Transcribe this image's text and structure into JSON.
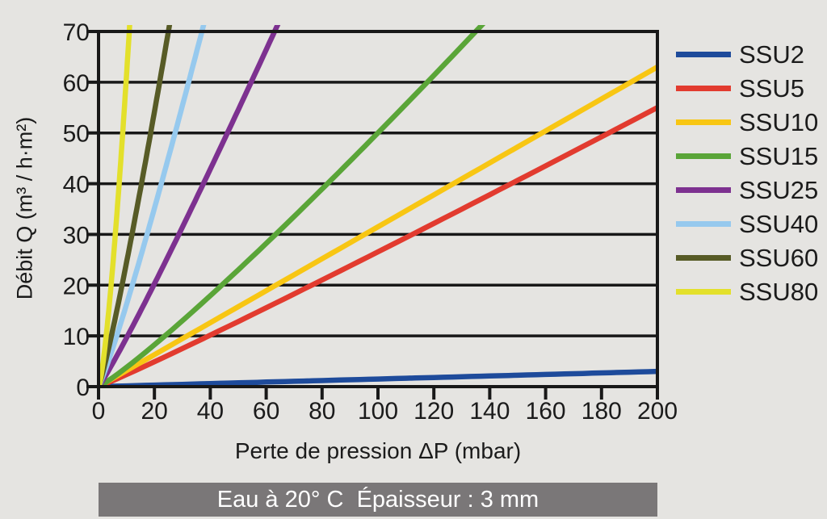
{
  "page": {
    "background_color": "#e5e4e1",
    "caption_bar_color": "#7a7778",
    "axis_color": "#181818"
  },
  "chart_data": {
    "type": "line",
    "title": "",
    "xlabel": "Perte de pression ΔP (mbar)",
    "ylabel": "Débit Q (m³ / h·m²)",
    "xlim": [
      0,
      200
    ],
    "ylim": [
      0,
      70
    ],
    "xticks": [
      0,
      20,
      40,
      60,
      80,
      100,
      120,
      140,
      160,
      180,
      200
    ],
    "yticks": [
      0,
      10,
      20,
      30,
      40,
      50,
      60,
      70
    ],
    "grid": "horizontal",
    "legend_position": "right",
    "caption": "Eau à 20° C  Épaisseur : 3 mm",
    "series": [
      {
        "name": "SSU2",
        "color": "#1e4b9b",
        "exponent": 1.0,
        "dp_end": 200,
        "q_end": 3,
        "points": [
          [
            0,
            0
          ],
          [
            50,
            0.8
          ],
          [
            100,
            1.5
          ],
          [
            150,
            2.3
          ],
          [
            200,
            3
          ]
        ]
      },
      {
        "name": "SSU5",
        "color": "#e23b2f",
        "exponent": 1.05,
        "dp_end": 200,
        "q_end": 55,
        "points": [
          [
            0,
            0
          ],
          [
            50,
            13
          ],
          [
            100,
            27
          ],
          [
            150,
            41
          ],
          [
            200,
            55
          ]
        ]
      },
      {
        "name": "SSU10",
        "color": "#f8c613",
        "exponent": 1.0,
        "dp_end": 200,
        "q_end": 63,
        "points": [
          [
            0,
            0
          ],
          [
            50,
            16
          ],
          [
            100,
            32
          ],
          [
            150,
            47
          ],
          [
            200,
            63
          ]
        ]
      },
      {
        "name": "SSU15",
        "color": "#5aa538",
        "exponent": 1.12,
        "dp_end": 135,
        "q_end": 70,
        "points": [
          [
            0,
            0
          ],
          [
            34,
            15
          ],
          [
            68,
            32
          ],
          [
            101,
            50
          ],
          [
            135,
            70
          ]
        ]
      },
      {
        "name": "SSU25",
        "color": "#7d3190",
        "exponent": 1.08,
        "dp_end": 63,
        "q_end": 70,
        "points": [
          [
            0,
            0
          ],
          [
            16,
            15
          ],
          [
            32,
            33
          ],
          [
            47,
            51
          ],
          [
            63,
            70
          ]
        ]
      },
      {
        "name": "SSU40",
        "color": "#96c9ee",
        "exponent": 1.12,
        "dp_end": 37,
        "q_end": 70,
        "points": [
          [
            0,
            0
          ],
          [
            9,
            15
          ],
          [
            19,
            33
          ],
          [
            28,
            51
          ],
          [
            37,
            70
          ]
        ]
      },
      {
        "name": "SSU60",
        "color": "#575b26",
        "exponent": 1.15,
        "dp_end": 25,
        "q_end": 70,
        "points": [
          [
            0,
            0
          ],
          [
            6,
            14
          ],
          [
            13,
            32
          ],
          [
            19,
            50
          ],
          [
            25,
            70
          ]
        ]
      },
      {
        "name": "SSU80",
        "color": "#e3e02b",
        "exponent": 1.4,
        "dp_end": 11,
        "q_end": 70,
        "points": [
          [
            0,
            0
          ],
          [
            3,
            13
          ],
          [
            6,
            30
          ],
          [
            8.5,
            48
          ],
          [
            11,
            70
          ]
        ]
      }
    ]
  }
}
